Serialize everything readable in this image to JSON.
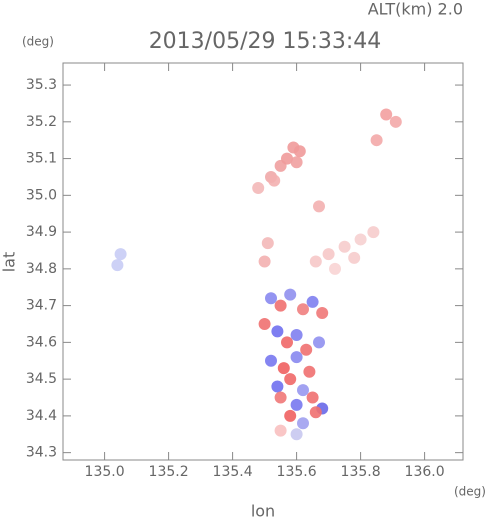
{
  "chart_data": {
    "type": "scatter",
    "title": "2013/05/29 15:33:44",
    "subtitle": "ALT(km) 2.0",
    "ylabel": "lat",
    "ylabel_unit": "(deg)",
    "xlabel": "lon",
    "xlabel_unit": "(deg)",
    "xlim": [
      134.87,
      136.12
    ],
    "ylim": [
      34.28,
      35.36
    ],
    "xticks": [
      {
        "value": 135,
        "label": "135.0"
      },
      135.2,
      135.4,
      135.6,
      135.8,
      {
        "value": 136,
        "label": "136.0"
      }
    ],
    "yticks": [
      34.3,
      34.4,
      34.5,
      34.6,
      34.7,
      34.8,
      34.9,
      {
        "value": 35,
        "label": "35.0"
      },
      35.1,
      35.2,
      35.3
    ],
    "x": [
      135.05,
      135.04,
      135.48,
      135.52,
      135.55,
      135.57,
      135.59,
      135.61,
      135.6,
      135.53,
      135.88,
      135.91,
      135.85,
      135.67,
      135.7,
      135.75,
      135.8,
      135.84,
      135.72,
      135.66,
      135.78,
      135.52,
      135.55,
      135.58,
      135.62,
      135.65,
      135.68,
      135.5,
      135.54,
      135.57,
      135.6,
      135.63,
      135.67,
      135.52,
      135.56,
      135.6,
      135.64,
      135.54,
      135.58,
      135.62,
      135.55,
      135.6,
      135.65,
      135.68,
      135.58,
      135.62,
      135.66,
      135.55,
      135.6,
      135.51,
      135.5
    ],
    "y": [
      34.84,
      34.81,
      35.02,
      35.05,
      35.08,
      35.1,
      35.13,
      35.12,
      35.09,
      35.04,
      35.22,
      35.2,
      35.15,
      34.97,
      34.84,
      34.86,
      34.88,
      34.9,
      34.8,
      34.82,
      34.83,
      34.72,
      34.7,
      34.73,
      34.69,
      34.71,
      34.68,
      34.65,
      34.63,
      34.6,
      34.62,
      34.58,
      34.6,
      34.55,
      34.53,
      34.56,
      34.52,
      34.48,
      34.5,
      34.47,
      34.45,
      34.43,
      34.45,
      34.42,
      34.4,
      34.38,
      34.41,
      34.36,
      34.35,
      34.87,
      34.82
    ],
    "colors": [
      "#c8ccf5",
      "#c8ccf5",
      "#f3b8b8",
      "#f0a8a8",
      "#f0a0a0",
      "#ef9a9a",
      "#ef9a9a",
      "#ef9a9a",
      "#f0a0a0",
      "#f3b0b0",
      "#f3a0a0",
      "#f3a8a8",
      "#f3a8a8",
      "#f3b0b0",
      "#f6c8c8",
      "#f6cccc",
      "#f6d0d0",
      "#f6cccc",
      "#f8d4d4",
      "#f6c8c8",
      "#f6cccc",
      "#8888f0",
      "#f07070",
      "#9090ee",
      "#f08080",
      "#8080f0",
      "#f07878",
      "#f07070",
      "#7070f0",
      "#f06868",
      "#8080f0",
      "#f07070",
      "#9090f0",
      "#7878f0",
      "#f06060",
      "#8888f0",
      "#f07070",
      "#7070f0",
      "#f06868",
      "#9898f0",
      "#f07878",
      "#7878f0",
      "#f07070",
      "#6868e8",
      "#f06060",
      "#a0a0f0",
      "#f07070",
      "#f8c0c0",
      "#c8c8f0",
      "#f3b8b8",
      "#f3b0b0"
    ]
  }
}
